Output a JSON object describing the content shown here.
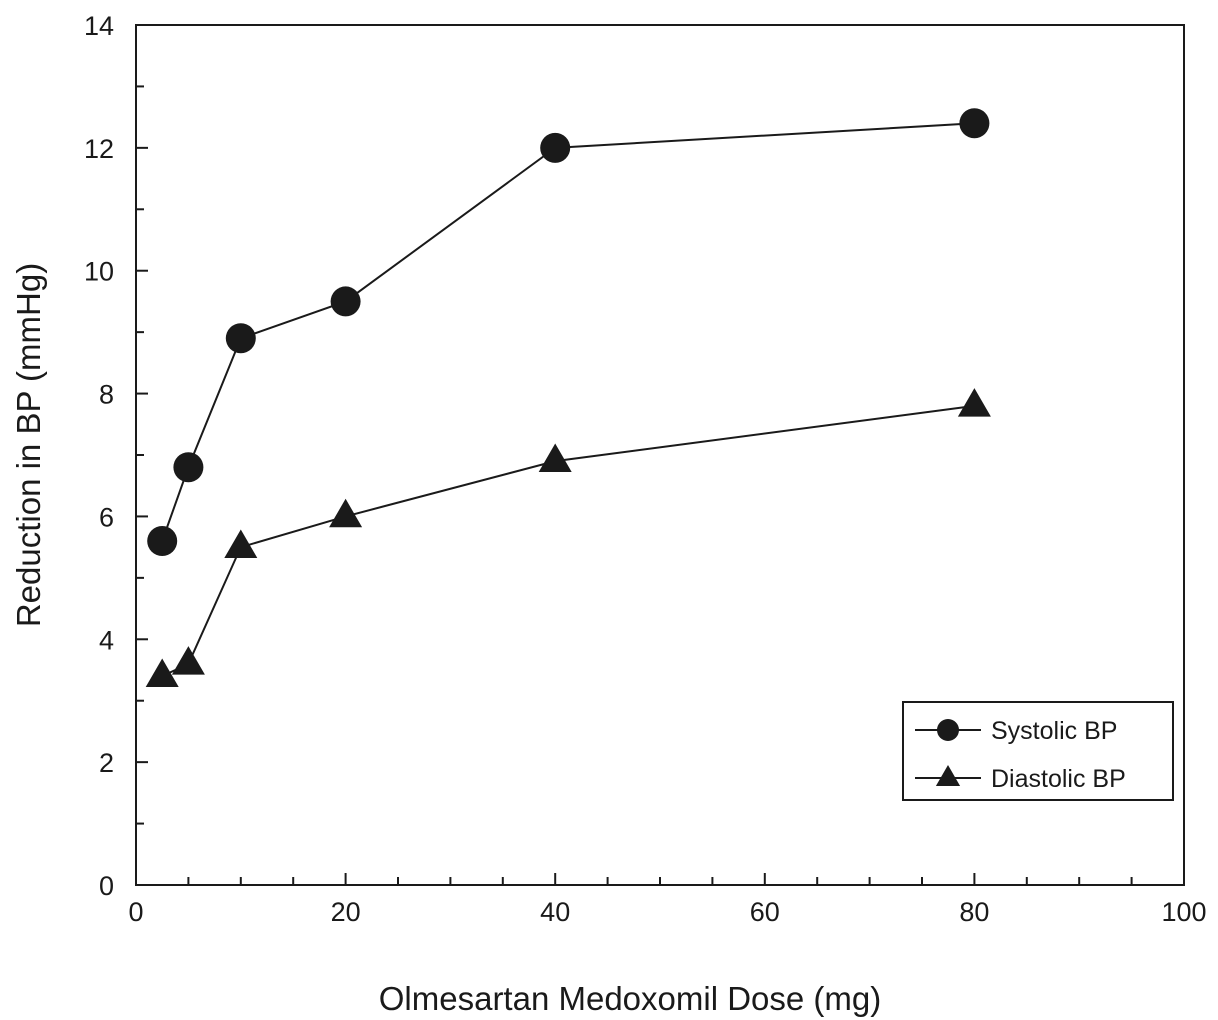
{
  "chart_data": {
    "type": "line",
    "title": "",
    "xlabel": "Olmesartan Medoxomil Dose (mg)",
    "ylabel": "Reduction in BP (mmHg)",
    "xlim": [
      0,
      100
    ],
    "ylim": [
      0,
      14
    ],
    "x_ticks": [
      "0",
      "20",
      "40",
      "60",
      "80",
      "100"
    ],
    "y_ticks": [
      "0",
      "2",
      "4",
      "6",
      "8",
      "10",
      "12",
      "14"
    ],
    "x_minor_step": 5,
    "y_minor_step": 1,
    "grid": false,
    "legend_position": "bottom-right",
    "series": [
      {
        "name": "Systolic BP",
        "marker": "circle",
        "color": "#1a1a1a",
        "x": [
          2.5,
          5,
          10,
          20,
          40,
          80
        ],
        "values": [
          5.6,
          6.8,
          8.9,
          9.5,
          12.0,
          12.4
        ]
      },
      {
        "name": "Diastolic BP",
        "marker": "triangle",
        "color": "#1a1a1a",
        "x": [
          2.5,
          5,
          10,
          20,
          40,
          80
        ],
        "values": [
          3.4,
          3.6,
          5.5,
          6.0,
          6.9,
          7.8
        ]
      }
    ]
  }
}
